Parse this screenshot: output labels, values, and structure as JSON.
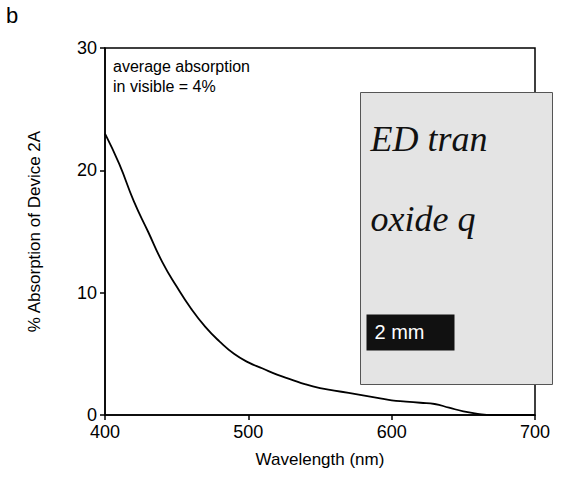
{
  "chart_data": {
    "type": "line",
    "panel_label": "b",
    "x_label": "Wavelength (nm)",
    "y_label": "% Absorption of Device 2A",
    "annotation": "average absorption\nin visible = 4%",
    "inset_texts": [
      "ED tran",
      "oxide q"
    ],
    "inset_scale_bar": "2 mm",
    "x": [
      400,
      410,
      420,
      430,
      440,
      450,
      460,
      470,
      480,
      490,
      500,
      510,
      520,
      530,
      540,
      550,
      560,
      570,
      580,
      590,
      600,
      610,
      620,
      630,
      640,
      650,
      660,
      670,
      680,
      690,
      700
    ],
    "values": [
      23,
      20.5,
      17.5,
      15,
      12.5,
      10.5,
      8.7,
      7.2,
      6,
      5,
      4.3,
      3.8,
      3.3,
      2.9,
      2.5,
      2.2,
      2,
      1.8,
      1.6,
      1.4,
      1.2,
      1.1,
      1.0,
      0.9,
      0.6,
      0.3,
      0.1,
      0,
      0,
      0,
      0
    ],
    "color": "#000000",
    "xlim": [
      400,
      700
    ],
    "xticks": [
      400,
      500,
      600,
      700
    ],
    "ylim": [
      0,
      30
    ],
    "yticks": [
      0,
      10,
      20,
      30
    ],
    "grid": false
  }
}
